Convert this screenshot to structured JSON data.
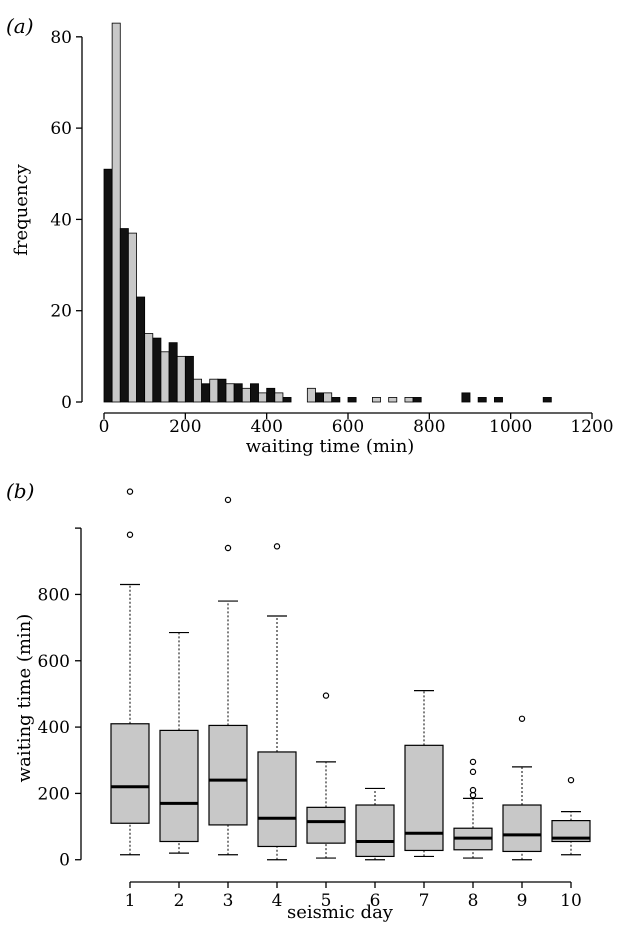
{
  "chart_data": [
    {
      "type": "bar",
      "panel_label": "(a)",
      "xlabel": "waiting time (min)",
      "ylabel": "frequency",
      "xlim": [
        0,
        1200
      ],
      "ylim": [
        0,
        85
      ],
      "xticks": [
        0,
        200,
        400,
        600,
        800,
        1000,
        1200
      ],
      "yticks": [
        0,
        20,
        40,
        60,
        80
      ],
      "bin_width": 40,
      "bin_starts": [
        0,
        40,
        80,
        120,
        160,
        200,
        240,
        280,
        320,
        360,
        400,
        440,
        480,
        520,
        560,
        600,
        640,
        680,
        720,
        760,
        800,
        840,
        880,
        920,
        960,
        1000,
        1040,
        1080,
        1120,
        1160
      ],
      "series": [
        {
          "color": "#111111",
          "values": [
            51,
            38,
            23,
            14,
            13,
            10,
            4,
            5,
            4,
            4,
            3,
            1,
            0,
            2,
            1,
            1,
            0,
            0,
            0,
            1,
            0,
            0,
            2,
            1,
            1,
            0,
            0,
            1,
            0,
            0
          ]
        },
        {
          "color": "#c8c8c8",
          "values": [
            83,
            37,
            15,
            11,
            10,
            5,
            5,
            4,
            3,
            2,
            2,
            0,
            3,
            2,
            0,
            0,
            1,
            1,
            1,
            0,
            0,
            0,
            0,
            0,
            0,
            0,
            0,
            0,
            0,
            0
          ]
        }
      ]
    },
    {
      "type": "box",
      "panel_label": "(b)",
      "xlabel": "seismic day",
      "ylabel": "waiting time (min)",
      "ylim": [
        -40,
        1130
      ],
      "yticks": [
        0,
        200,
        400,
        600,
        800
      ],
      "extra_tick": 1000,
      "categories": [
        "1",
        "2",
        "3",
        "4",
        "5",
        "6",
        "7",
        "8",
        "9",
        "10"
      ],
      "fill": "#c8c8c8",
      "boxes": [
        {
          "whisker_low": 15,
          "q1": 110,
          "median": 220,
          "q3": 410,
          "whisker_high": 830,
          "outliers": [
            980,
            1110
          ]
        },
        {
          "whisker_low": 20,
          "q1": 55,
          "median": 170,
          "q3": 390,
          "whisker_high": 685,
          "outliers": []
        },
        {
          "whisker_low": 15,
          "q1": 105,
          "median": 240,
          "q3": 405,
          "whisker_high": 780,
          "outliers": [
            940,
            1085
          ]
        },
        {
          "whisker_low": 0,
          "q1": 40,
          "median": 125,
          "q3": 325,
          "whisker_high": 735,
          "outliers": [
            945
          ]
        },
        {
          "whisker_low": 5,
          "q1": 50,
          "median": 115,
          "q3": 158,
          "whisker_high": 295,
          "outliers": [
            495
          ]
        },
        {
          "whisker_low": 0,
          "q1": 10,
          "median": 55,
          "q3": 165,
          "whisker_high": 215,
          "outliers": []
        },
        {
          "whisker_low": 10,
          "q1": 28,
          "median": 80,
          "q3": 345,
          "whisker_high": 510,
          "outliers": []
        },
        {
          "whisker_low": 5,
          "q1": 30,
          "median": 65,
          "q3": 95,
          "whisker_high": 185,
          "outliers": [
            195,
            210,
            265,
            295
          ]
        },
        {
          "whisker_low": 0,
          "q1": 25,
          "median": 75,
          "q3": 165,
          "whisker_high": 280,
          "outliers": [
            425
          ]
        },
        {
          "whisker_low": 15,
          "q1": 55,
          "median": 65,
          "q3": 118,
          "whisker_high": 145,
          "outliers": [
            240
          ]
        }
      ]
    }
  ]
}
